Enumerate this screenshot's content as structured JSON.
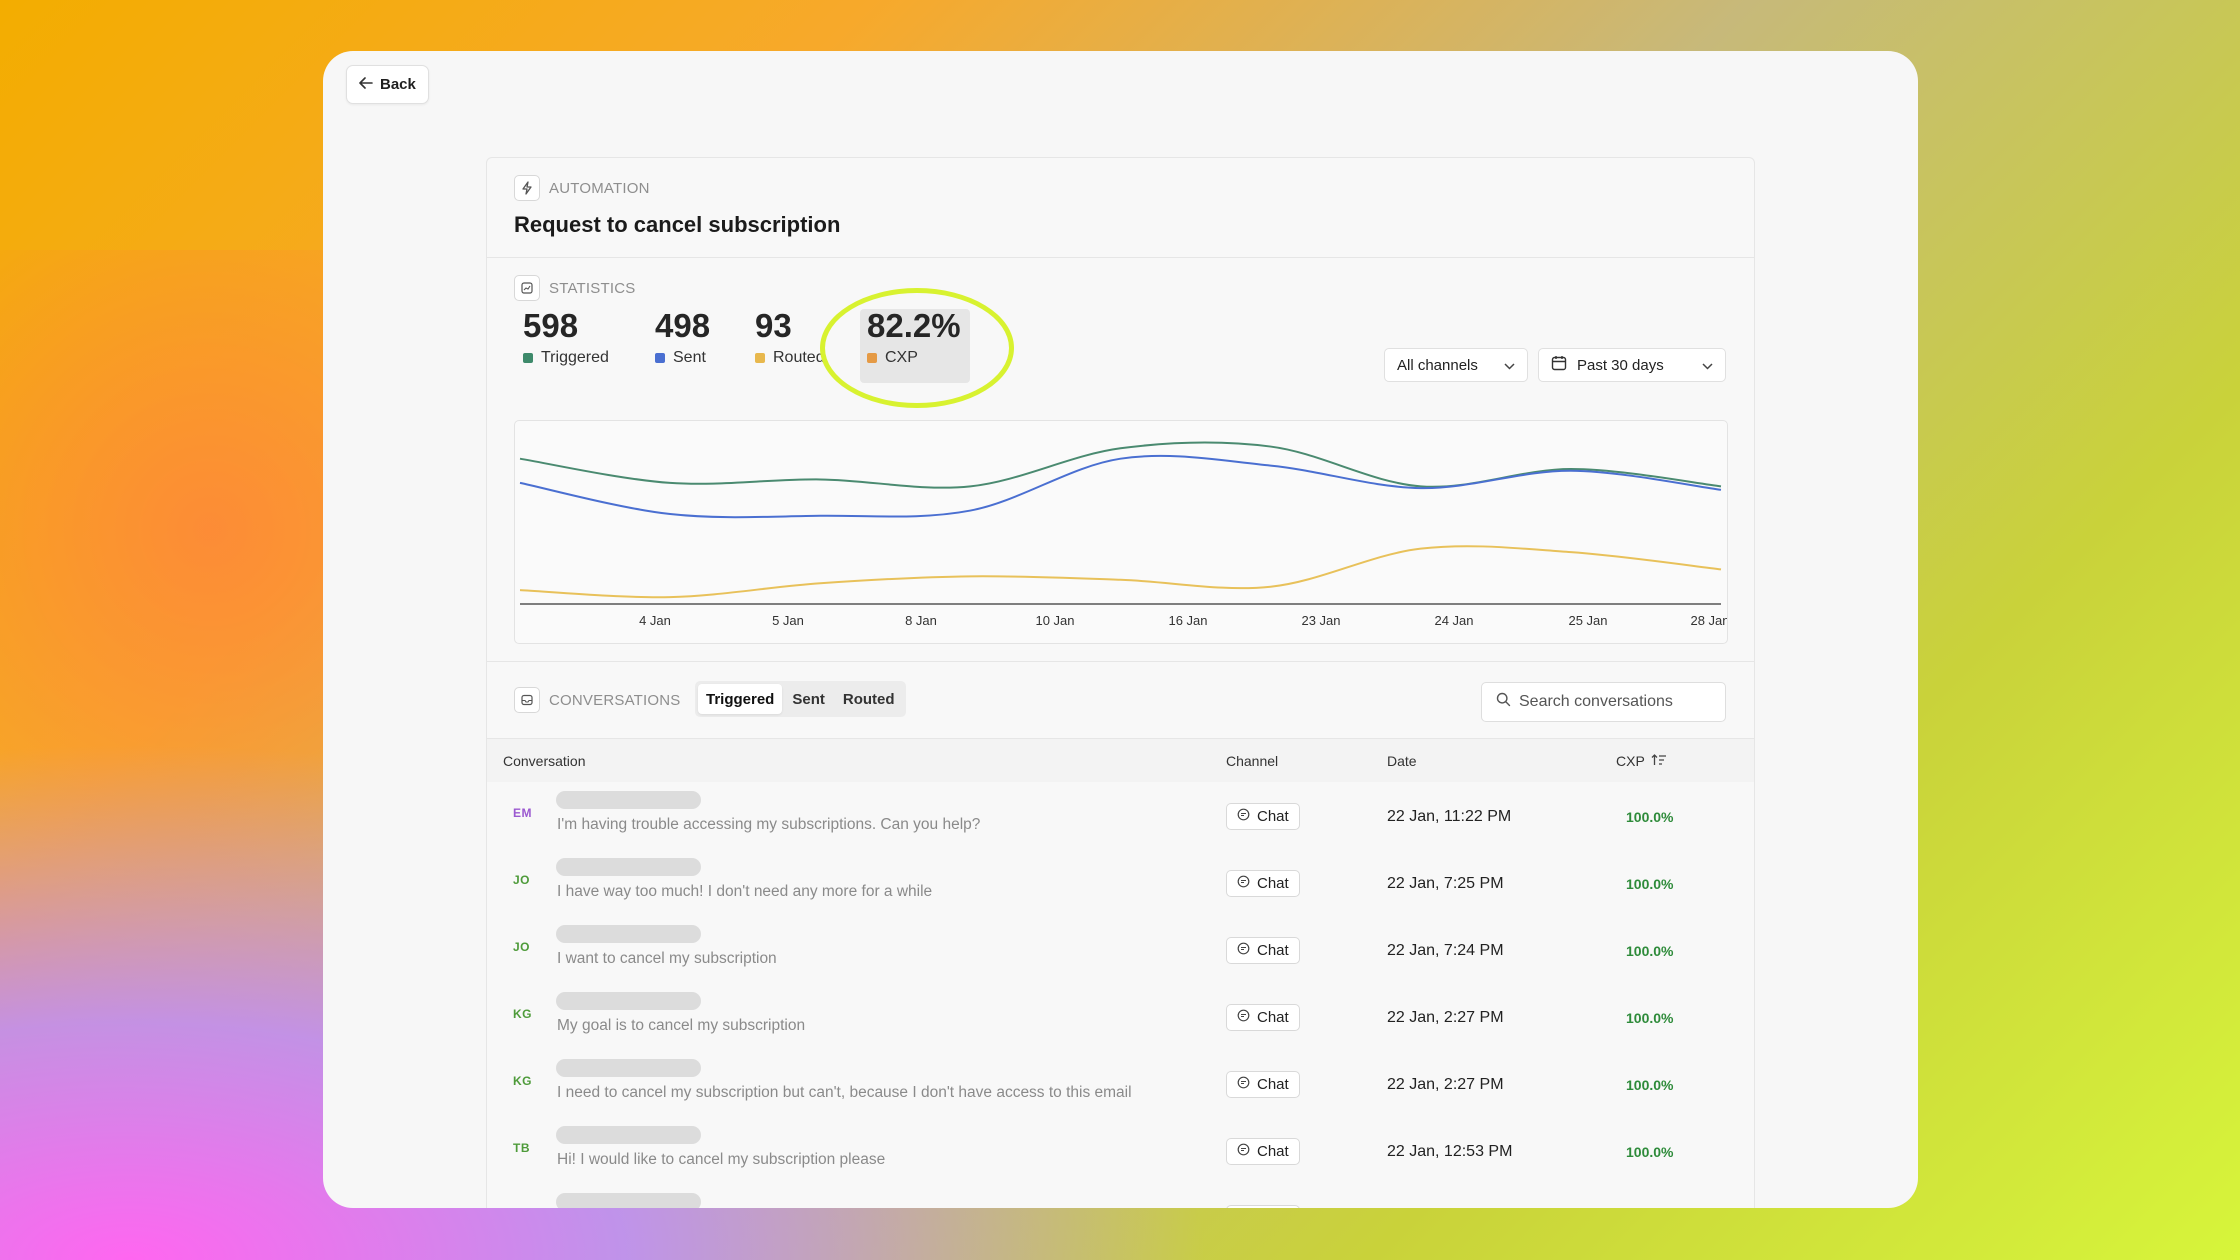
{
  "back_label": "Back",
  "automation": {
    "section_label": "AUTOMATION",
    "title": "Request to cancel subscription"
  },
  "statistics": {
    "section_label": "STATISTICS",
    "metrics": [
      {
        "value": "598",
        "label": "Triggered",
        "color": "#3e8a6b"
      },
      {
        "value": "498",
        "label": "Sent",
        "color": "#4a6fd1"
      },
      {
        "value": "93",
        "label": "Routed",
        "color": "#e8b84d"
      },
      {
        "value": "82.2%",
        "label": "CXP",
        "color": "#e59a45"
      }
    ],
    "channel_filter": "All channels",
    "date_filter": "Past 30 days"
  },
  "chart_data": {
    "type": "line",
    "categories": [
      "4 Jan",
      "5 Jan",
      "8 Jan",
      "10 Jan",
      "16 Jan",
      "23 Jan",
      "24 Jan",
      "25 Jan",
      "28 Jan"
    ],
    "series": [
      {
        "name": "Triggered",
        "color": "#4a8a70",
        "values": [
          0.84,
          0.7,
          0.72,
          0.68,
          0.9,
          0.91,
          0.68,
          0.78,
          0.68
        ]
      },
      {
        "name": "Sent",
        "color": "#4a6fd1",
        "values": [
          0.7,
          0.52,
          0.51,
          0.54,
          0.84,
          0.8,
          0.67,
          0.77,
          0.66
        ]
      },
      {
        "name": "Routed",
        "color": "#e8c15a",
        "values": [
          0.08,
          0.04,
          0.12,
          0.16,
          0.14,
          0.1,
          0.32,
          0.3,
          0.2
        ]
      }
    ]
  },
  "conversations": {
    "section_label": "CONVERSATIONS",
    "tabs": [
      "Triggered",
      "Sent",
      "Routed"
    ],
    "active_tab": "Triggered",
    "search_placeholder": "Search conversations",
    "columns": {
      "conversation": "Conversation",
      "channel": "Channel",
      "date": "Date",
      "cxp": "CXP"
    },
    "rows": [
      {
        "initials": "EM",
        "color": "#9b59d0",
        "message": "I'm having trouble accessing my subscriptions. Can you help?",
        "channel": "Chat",
        "date": "22 Jan, 11:22 PM",
        "cxp": "100.0%"
      },
      {
        "initials": "JO",
        "color": "#4e9b3a",
        "message": "I have way too much! I don't need any more for a while",
        "channel": "Chat",
        "date": "22 Jan, 7:25 PM",
        "cxp": "100.0%"
      },
      {
        "initials": "JO",
        "color": "#4e9b3a",
        "message": "I want to cancel my subscription",
        "channel": "Chat",
        "date": "22 Jan, 7:24 PM",
        "cxp": "100.0%"
      },
      {
        "initials": "KG",
        "color": "#4e9b3a",
        "message": "My goal is to cancel my subscription",
        "channel": "Chat",
        "date": "22 Jan, 2:27 PM",
        "cxp": "100.0%"
      },
      {
        "initials": "KG",
        "color": "#4e9b3a",
        "message": "I need to cancel my subscription but can't, because I don't have access to this email",
        "channel": "Chat",
        "date": "22 Jan, 2:27 PM",
        "cxp": "100.0%"
      },
      {
        "initials": "TB",
        "color": "#4e9b3a",
        "message": "Hi! I would like to cancel my subscription please",
        "channel": "Chat",
        "date": "22 Jan, 12:53 PM",
        "cxp": "100.0%"
      }
    ]
  }
}
